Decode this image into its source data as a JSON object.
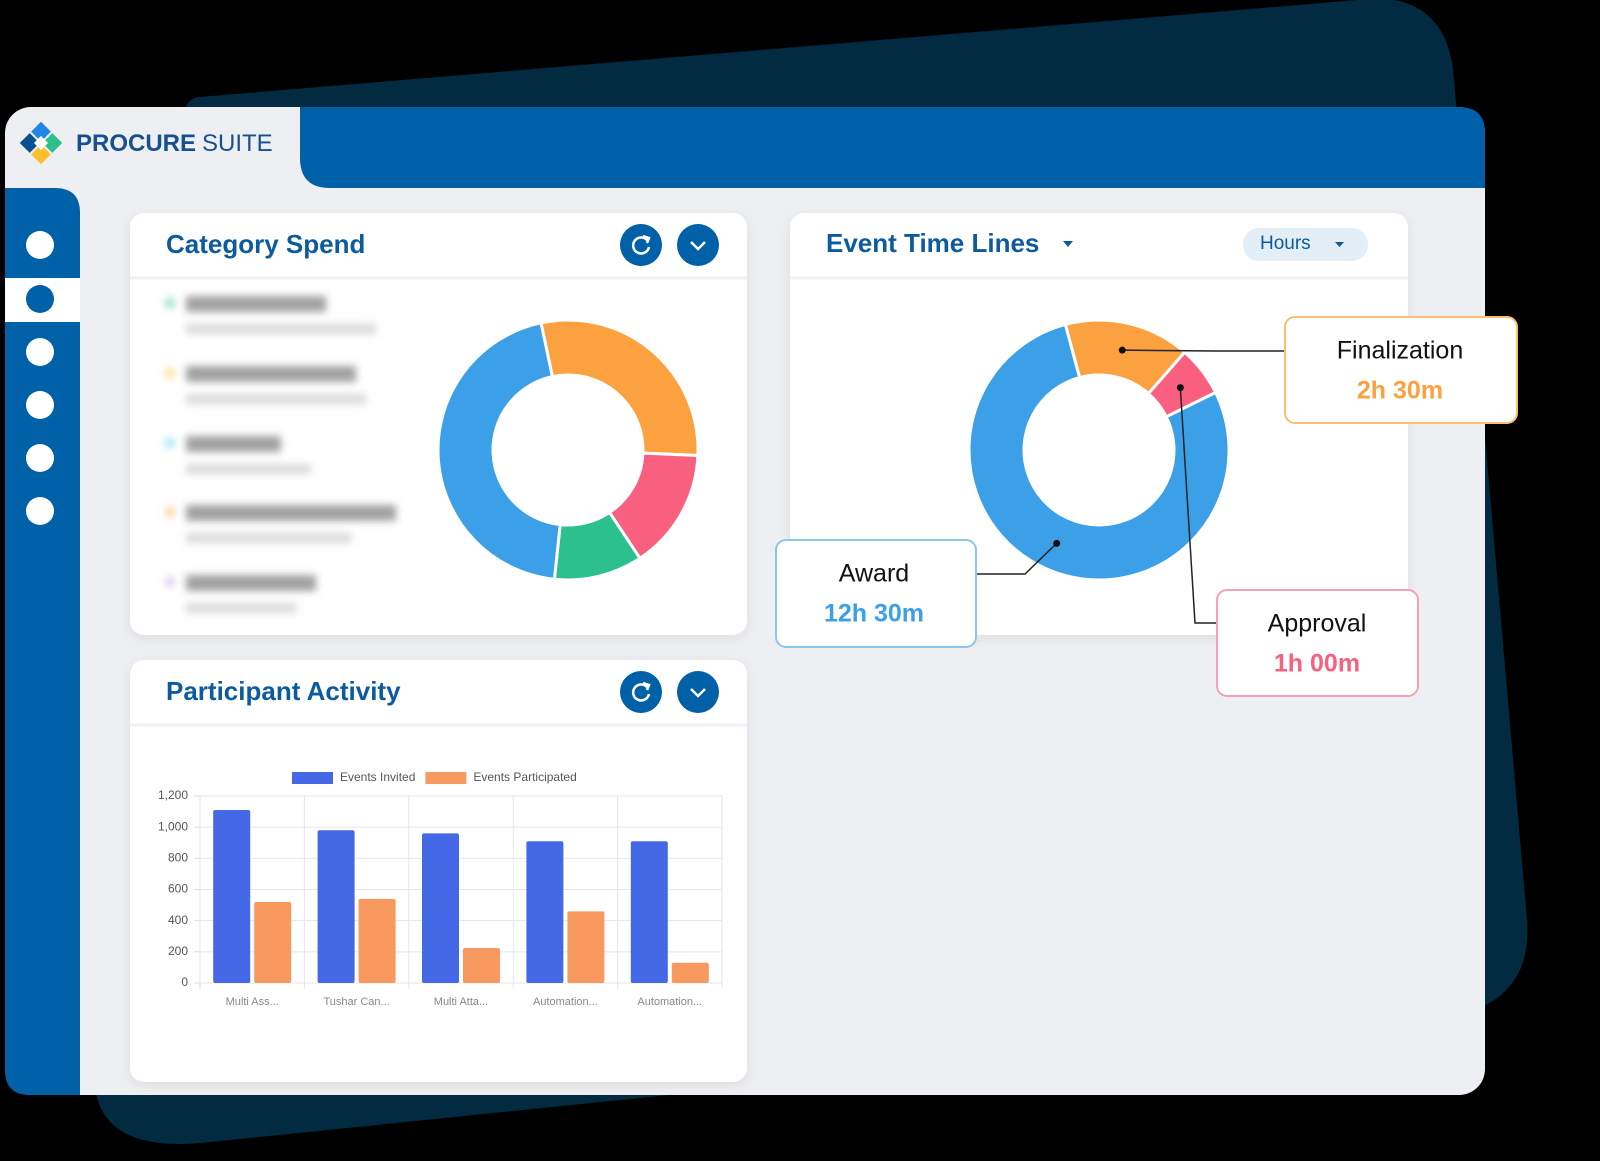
{
  "header": {
    "brand_bold": "PROCURE",
    "brand_light": "SUITE"
  },
  "chart_data": [
    {
      "type": "donut",
      "title": "Category Spend",
      "values": [
        29,
        15,
        11,
        45
      ],
      "colors": [
        "#fba140",
        "#f9607f",
        "#2cc08e",
        "#3ba0e8"
      ]
    },
    {
      "type": "donut",
      "title": "Event Time Lines",
      "period_selector": "Hours",
      "categories": [
        "Finalization",
        "Approval",
        "Award"
      ],
      "values": [
        2.5,
        1,
        12.5
      ],
      "value_labels": [
        "2h 30m",
        "1h 00m",
        "12h 30m"
      ],
      "colors": [
        "#fba140",
        "#f9607f",
        "#3ba0e8"
      ]
    },
    {
      "type": "bar",
      "title": "Participant Activity",
      "categories": [
        "Multi Ass...",
        "Tushar Can...",
        "Multi Atta...",
        "Automation...",
        "Automation..."
      ],
      "series": [
        {
          "name": "Events Invited",
          "color": "#4468e6",
          "values": [
            1110,
            980,
            960,
            910,
            910
          ]
        },
        {
          "name": "Events Participated",
          "color": "#f89a60",
          "values": [
            520,
            540,
            225,
            460,
            130
          ]
        }
      ],
      "ylim": [
        0,
        1200
      ],
      "yticks": [
        0,
        200,
        400,
        600,
        800,
        {
          "value": 1000,
          "label": "1,000"
        },
        {
          "value": 1200,
          "label": "1,200"
        }
      ],
      "grid": true,
      "legend": "top"
    }
  ]
}
